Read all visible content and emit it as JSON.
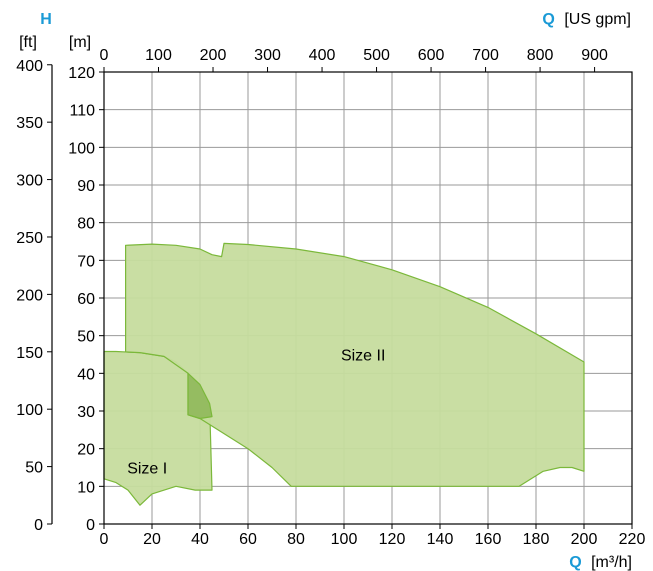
{
  "colors": {
    "accent": "#1a9ad6",
    "region_fill": "#c6dc9e",
    "region_stroke": "#7bb83a",
    "overlap_fill": "#8fb85a",
    "grid": "#9a9a9a",
    "axis": "#000000"
  },
  "labels": {
    "h_symbol": "H",
    "q_symbol_top": "Q",
    "q_unit_top": "[US gpm]",
    "ft_unit": "[ft]",
    "m_unit": "[m]",
    "q_symbol_bottom": "Q",
    "q_unit_bottom": "[m³/h]"
  },
  "chart_data": {
    "type": "area",
    "title": "",
    "x_axis": {
      "label": "Q [m³/h]",
      "range": [
        0,
        220
      ],
      "ticks": [
        0,
        20,
        40,
        60,
        80,
        100,
        120,
        140,
        160,
        180,
        200,
        220
      ]
    },
    "x2_axis": {
      "label": "Q [US gpm]",
      "ticks": [
        0,
        100,
        200,
        300,
        400,
        500,
        600,
        700,
        800,
        900
      ],
      "usgpm_per_m3h": 4.4029
    },
    "y_axis": {
      "label": "H [m]",
      "range": [
        0,
        120
      ],
      "ticks": [
        0,
        10,
        20,
        30,
        40,
        50,
        60,
        70,
        80,
        90,
        100,
        110,
        120
      ]
    },
    "y2_axis": {
      "label": "H [ft]",
      "ticks": [
        0,
        50,
        100,
        150,
        200,
        250,
        300,
        350,
        400
      ],
      "ft_per_m": 3.2808
    },
    "grid": true,
    "series": [
      {
        "name": "Size I",
        "label_pos": [
          18,
          15
        ],
        "points": [
          [
            0,
            12
          ],
          [
            5,
            11
          ],
          [
            10,
            9
          ],
          [
            15,
            5
          ],
          [
            20,
            8
          ],
          [
            30,
            10
          ],
          [
            38,
            9
          ],
          [
            45,
            9
          ],
          [
            44,
            32
          ],
          [
            40,
            37
          ],
          [
            35,
            40
          ],
          [
            30,
            43
          ],
          [
            25,
            44.5
          ],
          [
            15,
            45.5
          ],
          [
            5,
            45.8
          ],
          [
            0,
            45.8
          ]
        ]
      },
      {
        "name": "Size II",
        "label_pos": [
          108,
          45
        ],
        "points": [
          [
            9,
            74
          ],
          [
            20,
            74.3
          ],
          [
            30,
            74
          ],
          [
            40,
            73
          ],
          [
            45,
            71.5
          ],
          [
            49,
            71
          ],
          [
            50,
            74.5
          ],
          [
            60,
            74.2
          ],
          [
            80,
            73
          ],
          [
            100,
            71
          ],
          [
            120,
            67.5
          ],
          [
            140,
            63
          ],
          [
            160,
            57.5
          ],
          [
            180,
            50.5
          ],
          [
            200,
            43
          ],
          [
            200,
            14
          ],
          [
            195,
            15
          ],
          [
            190,
            15
          ],
          [
            183,
            14
          ],
          [
            178,
            12
          ],
          [
            173,
            10
          ],
          [
            78,
            10
          ],
          [
            70,
            15
          ],
          [
            60,
            20
          ],
          [
            50,
            24
          ],
          [
            40,
            28
          ],
          [
            35,
            29
          ],
          [
            35,
            40
          ],
          [
            25,
            44.5
          ],
          [
            15,
            45.5
          ],
          [
            9,
            45.7
          ]
        ]
      },
      {
        "name": "",
        "role": "overlap",
        "points": [
          [
            35,
            40
          ],
          [
            40,
            37
          ],
          [
            44,
            32
          ],
          [
            45,
            28.5
          ],
          [
            40,
            28
          ],
          [
            35,
            29
          ]
        ]
      }
    ]
  }
}
